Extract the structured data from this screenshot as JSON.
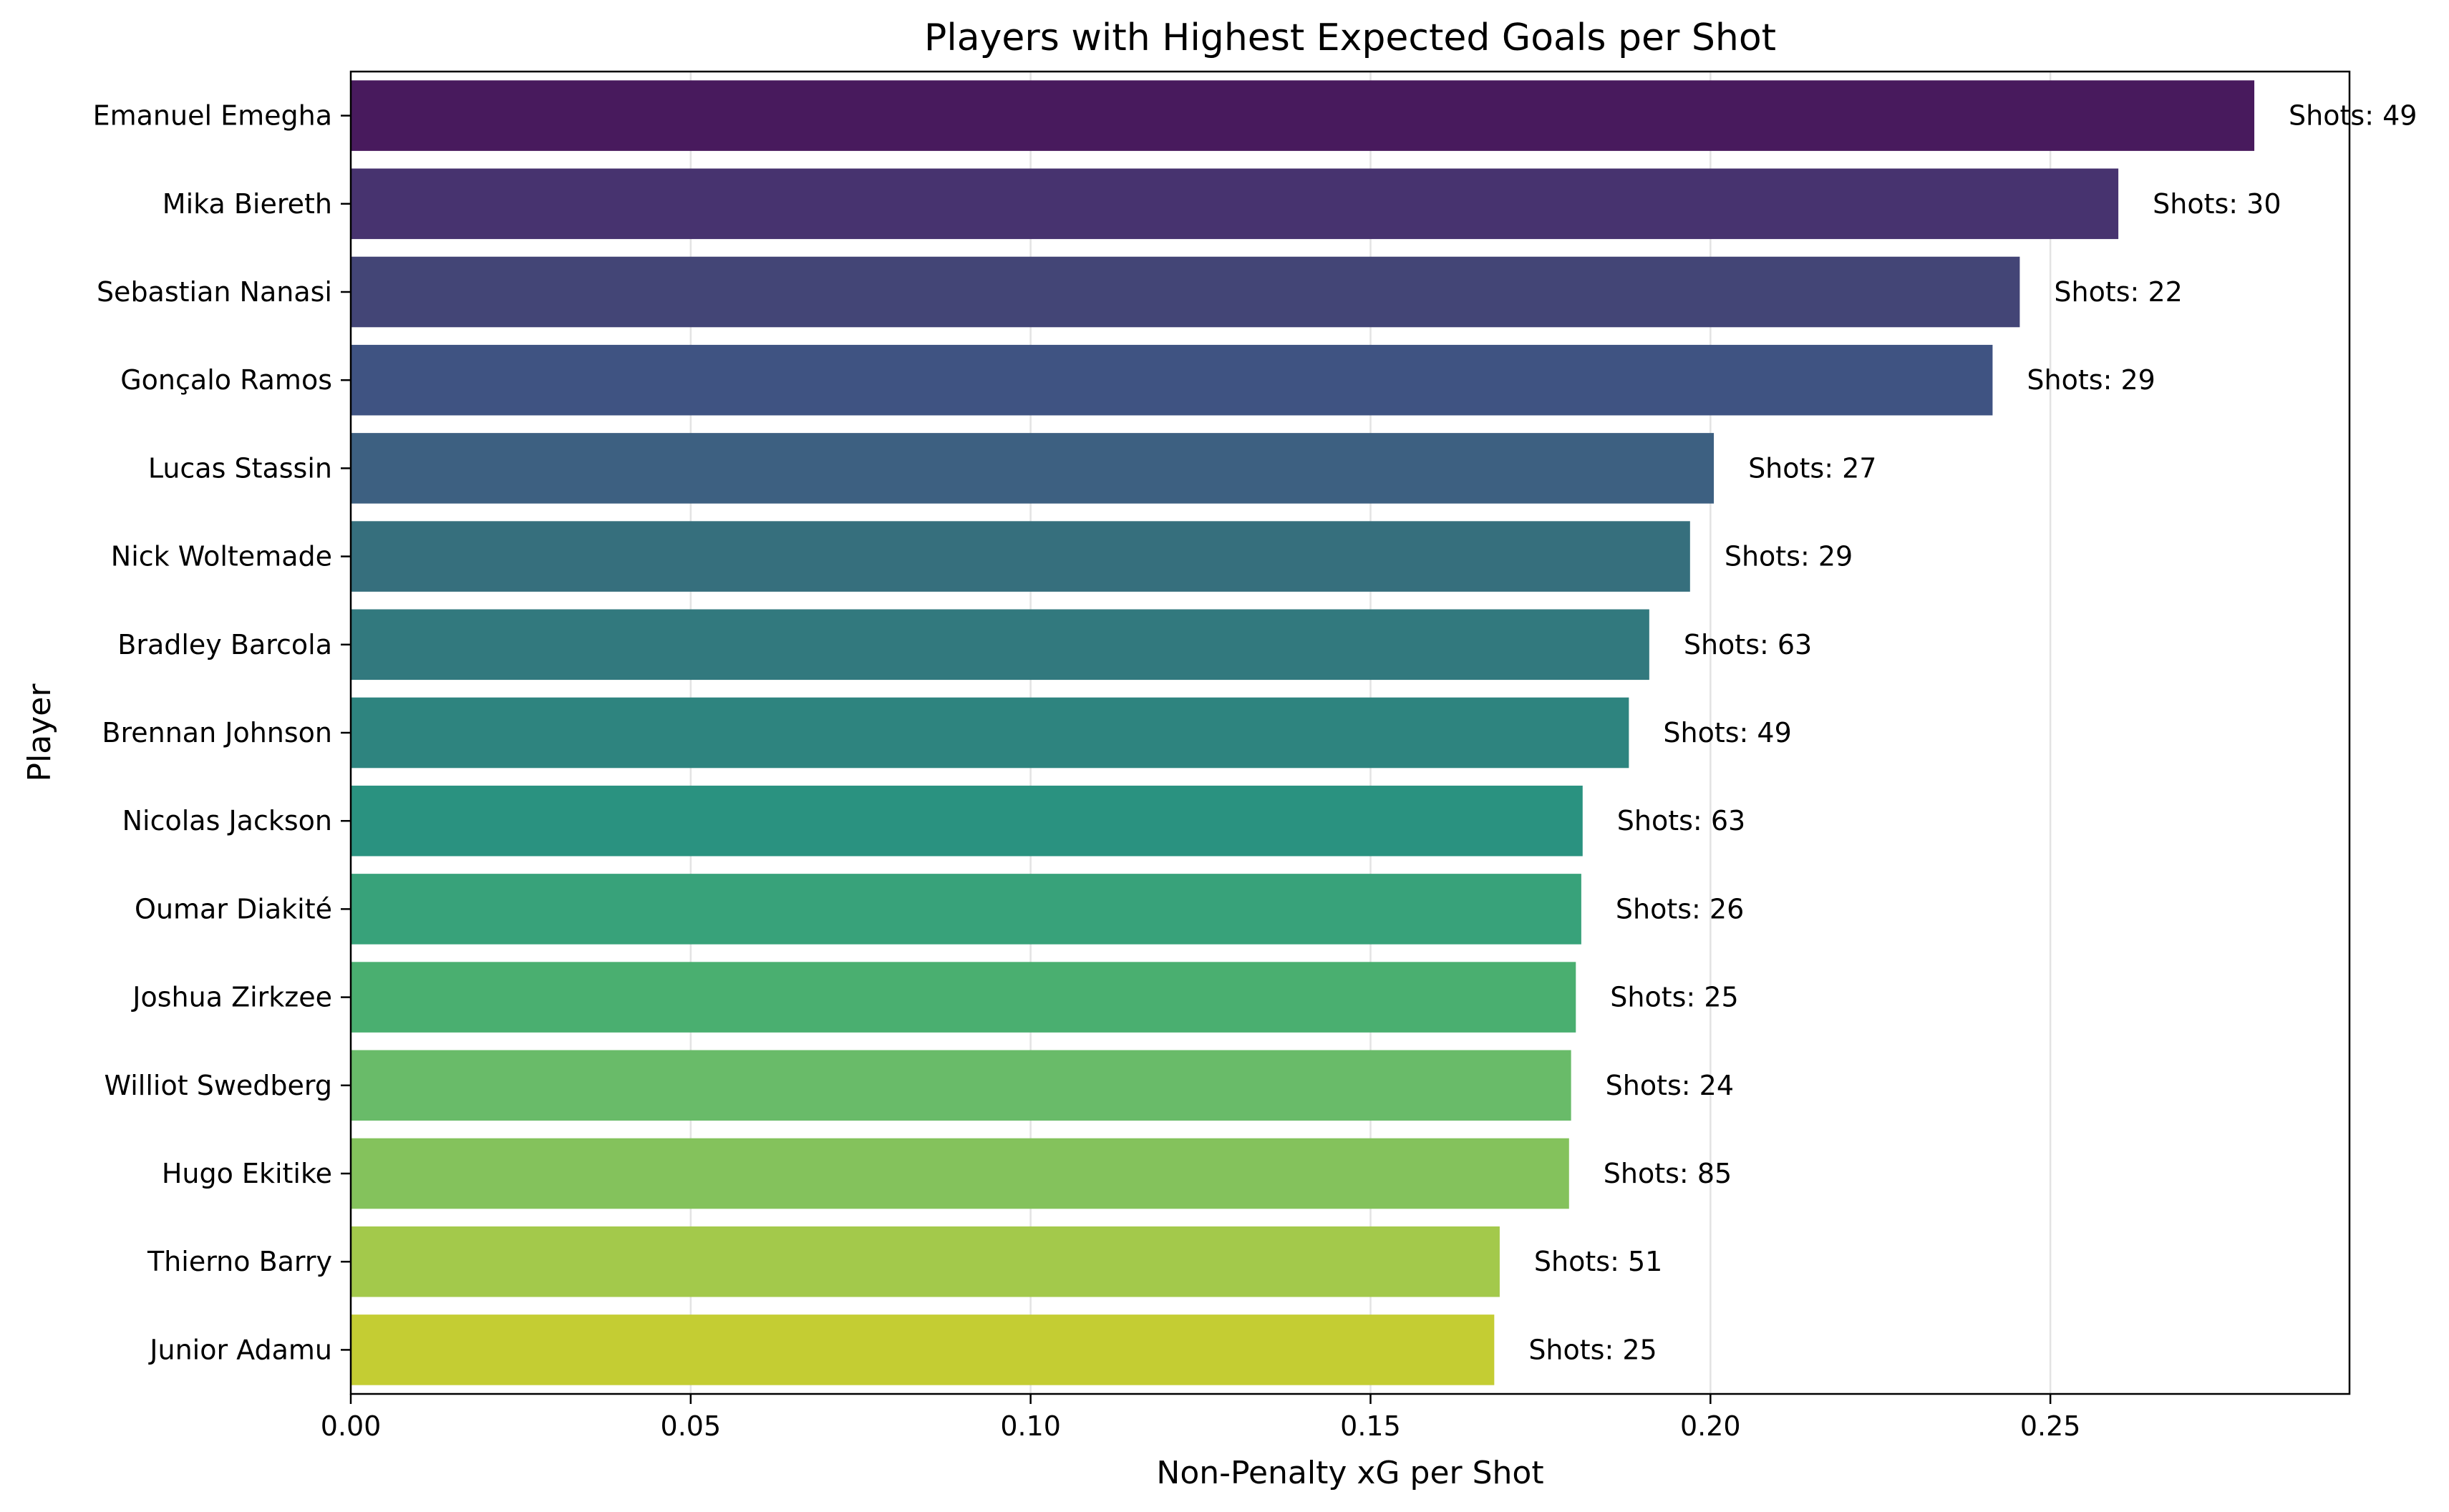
{
  "chart_data": {
    "type": "bar",
    "orientation": "horizontal",
    "title": "Players with Highest Expected Goals per Shot",
    "xlabel": "Non-Penalty xG per Shot",
    "ylabel": "Player",
    "xlim": [
      0,
      0.294
    ],
    "xticks": [
      "0.00",
      "0.05",
      "0.10",
      "0.15",
      "0.20",
      "0.25"
    ],
    "grid": "x",
    "categories": [
      "Emanuel Emegha",
      "Mika Biereth",
      "Sebastian Nanasi",
      "Gonçalo Ramos",
      "Lucas Stassin",
      "Nick Woltemade",
      "Bradley Barcola",
      "Brennan Johnson",
      "Nicolas Jackson",
      "Oumar Diakité",
      "Joshua Zirkzee",
      "Williot Swedberg",
      "Hugo Ekitike",
      "Thierno Barry",
      "Junior Adamu"
    ],
    "values": [
      0.28,
      0.26,
      0.2455,
      0.2415,
      0.2005,
      0.197,
      0.191,
      0.188,
      0.1812,
      0.181,
      0.1802,
      0.1795,
      0.1792,
      0.169,
      0.1682
    ],
    "annotations": [
      "Shots: 49",
      "Shots: 30",
      "Shots: 22",
      "Shots: 29",
      "Shots: 27",
      "Shots: 29",
      "Shots: 63",
      "Shots: 49",
      "Shots: 63",
      "Shots: 26",
      "Shots: 25",
      "Shots: 24",
      "Shots: 85",
      "Shots: 51",
      "Shots: 25"
    ],
    "colors": [
      "#481a5d",
      "#47336f",
      "#434576",
      "#3f5382",
      "#3d6081",
      "#366f7d",
      "#32797e",
      "#2e847f",
      "#2a9280",
      "#38a27a",
      "#4aaf70",
      "#69bb69",
      "#84c25c",
      "#a3c94b",
      "#c4cd33"
    ]
  }
}
